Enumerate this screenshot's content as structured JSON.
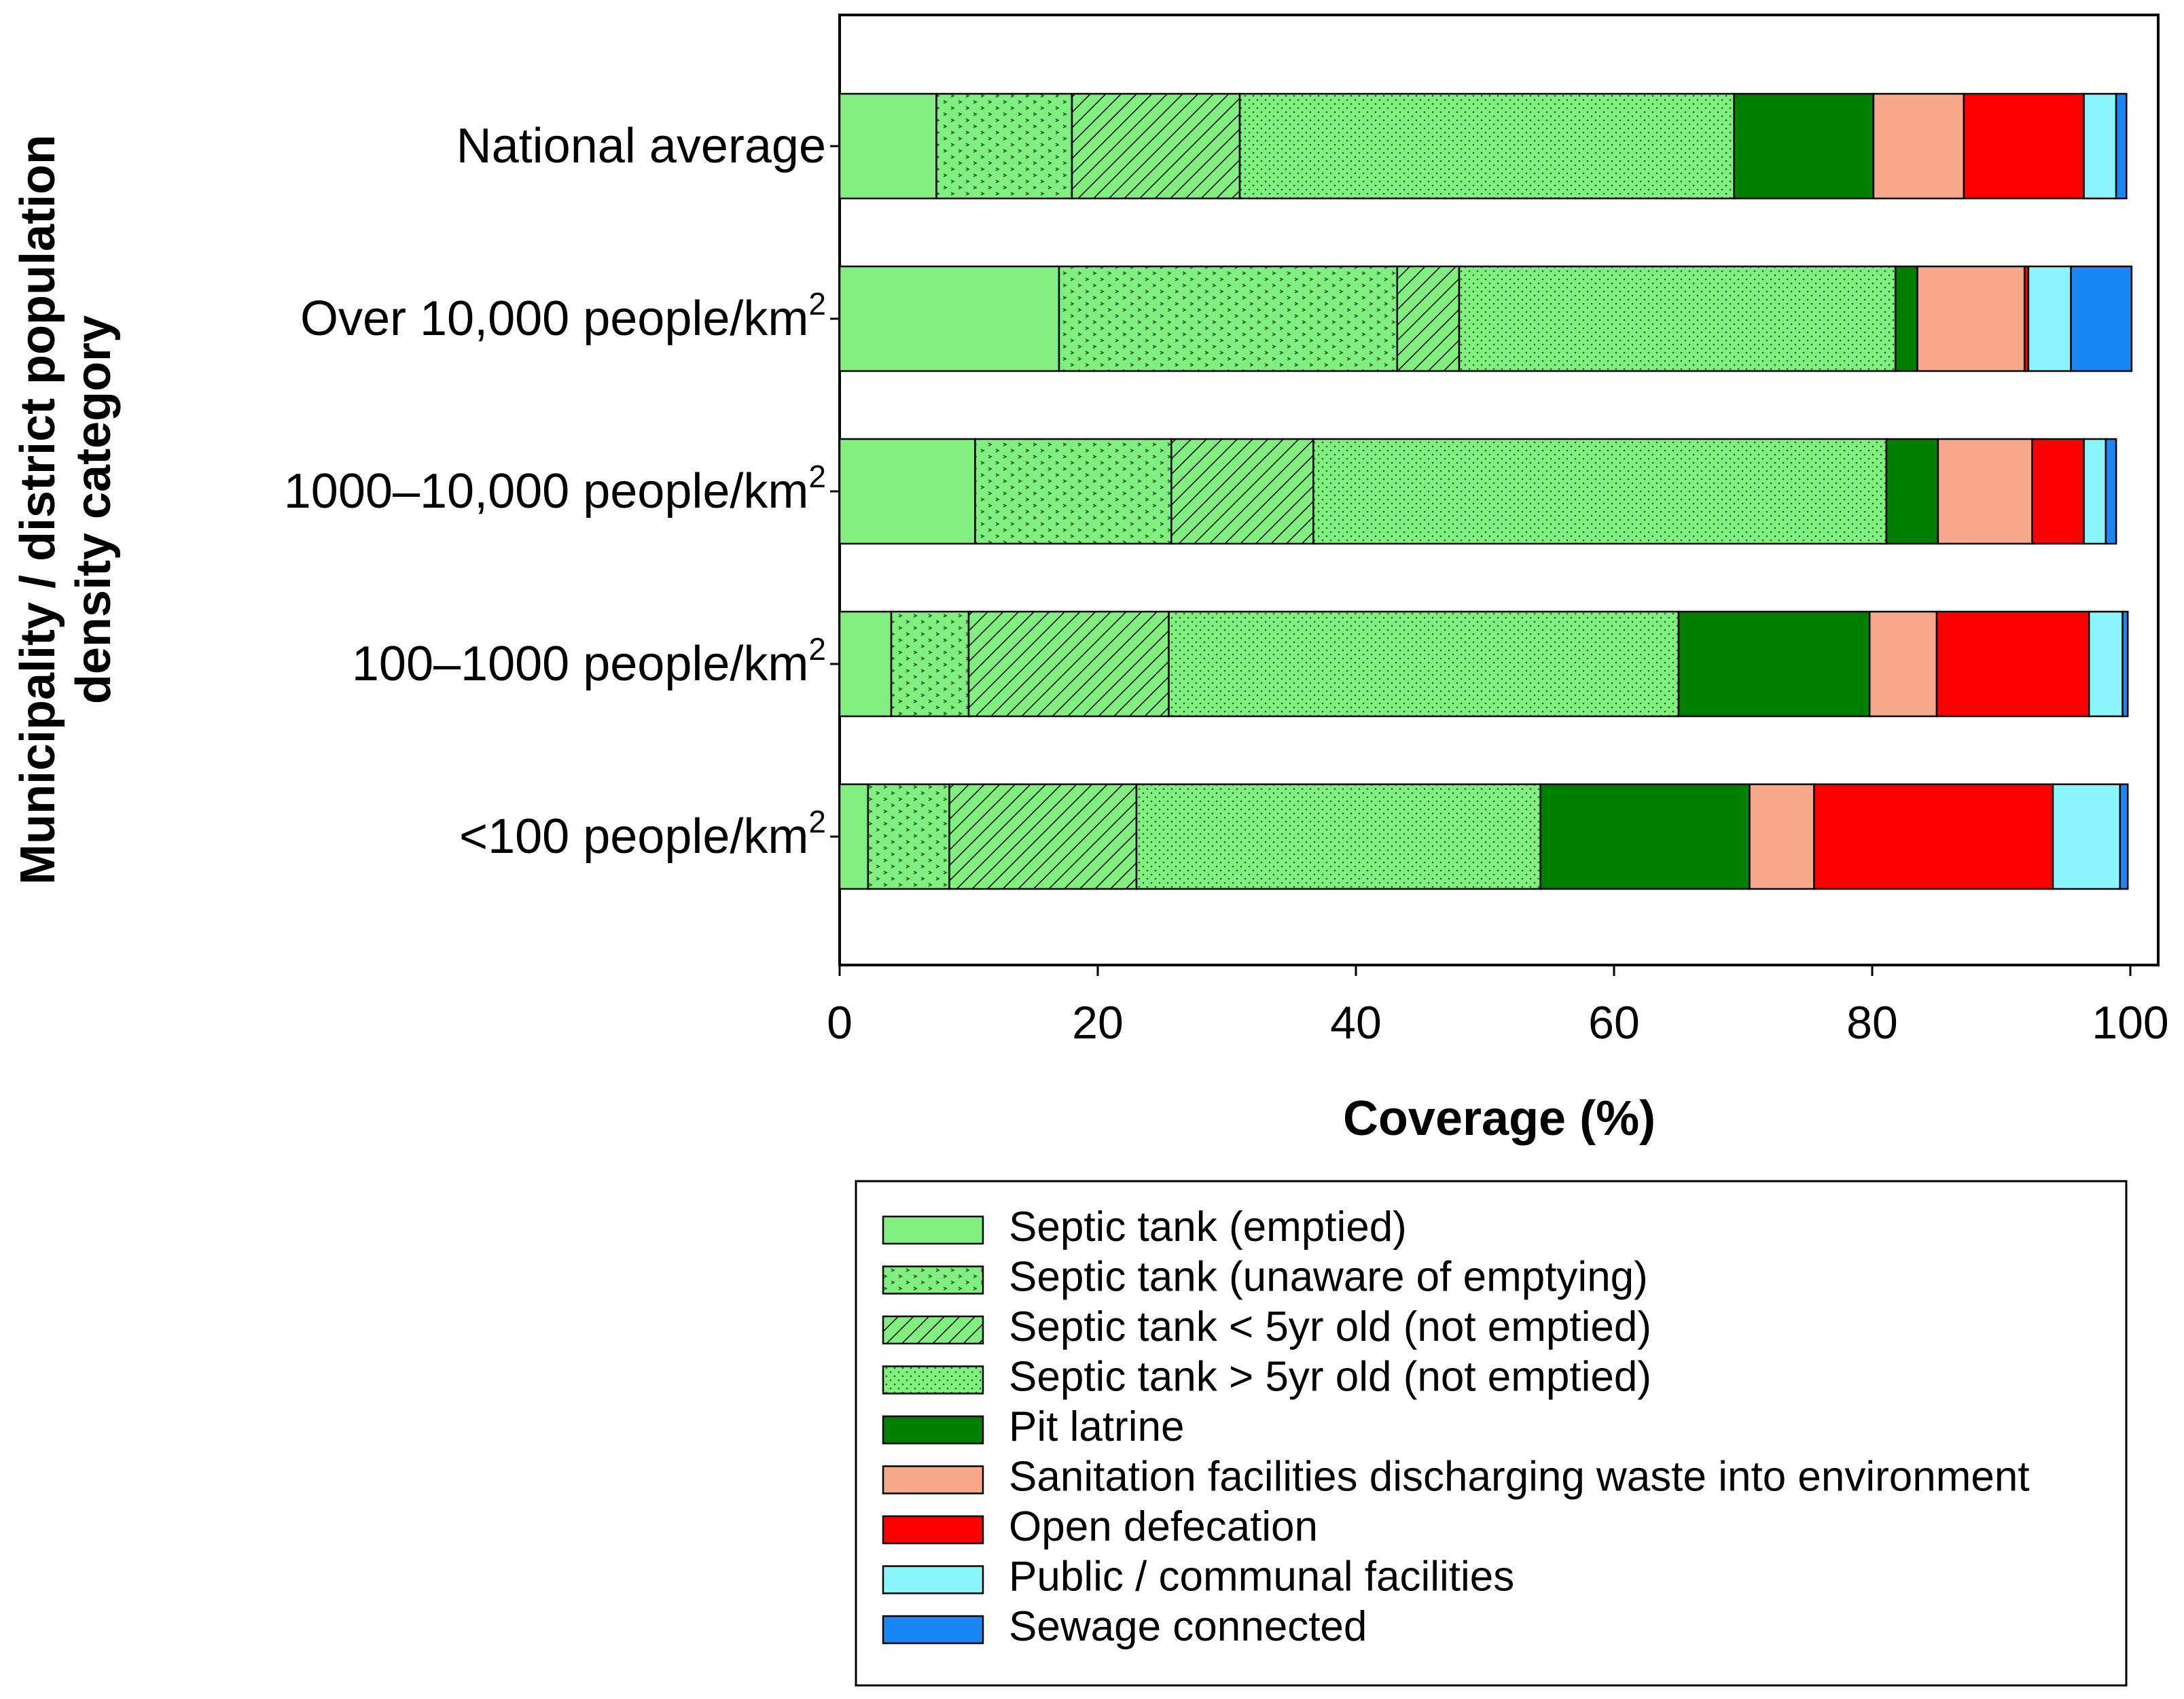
{
  "chart_data": {
    "type": "bar",
    "orientation": "horizontal",
    "stacked": true,
    "title": "",
    "xlabel": "Coverage (%)",
    "ylabel": "Municipality / district population density category",
    "ylabel_lines": [
      "Municipality / district population",
      "density category"
    ],
    "xlim": [
      0,
      100
    ],
    "xticks": [
      "0",
      "20",
      "40",
      "60",
      "80",
      "100"
    ],
    "grid": false,
    "legend_position": "bottom",
    "categories": [
      {
        "label": "National average",
        "superscript": ""
      },
      {
        "label": "Over 10,000 people/km",
        "superscript": "2"
      },
      {
        "label": "1000–10,000 people/km",
        "superscript": "2"
      },
      {
        "label": "100–1000 people/km",
        "superscript": "2"
      },
      {
        "label": "<100 people/km",
        "superscript": "2"
      }
    ],
    "series": [
      {
        "name": "Septic tank (emptied)",
        "color": "#80ef80",
        "pattern": "solid",
        "values": [
          7.5,
          17.0,
          10.5,
          4.0,
          2.2
        ]
      },
      {
        "name": "Septic tank (unaware of emptying)",
        "color": "#80ef80",
        "pattern": "arrows",
        "values": [
          10.5,
          26.2,
          15.2,
          6.0,
          6.3
        ]
      },
      {
        "name": "Septic tank < 5yr old (not emptied)",
        "color": "#80ef80",
        "pattern": "hatch",
        "values": [
          13.0,
          4.8,
          11.0,
          15.5,
          14.5
        ]
      },
      {
        "name": "Septic tank > 5yr old (not emptied)",
        "color": "#80ef80",
        "pattern": "dots",
        "values": [
          38.3,
          33.8,
          44.4,
          39.5,
          31.3
        ]
      },
      {
        "name": "Pit latrine",
        "color": "#008000",
        "pattern": "solid",
        "values": [
          10.8,
          1.7,
          4.0,
          14.8,
          16.2
        ]
      },
      {
        "name": "Sanitation facilities discharging waste into environment",
        "color": "#f8a88a",
        "pattern": "solid",
        "values": [
          7.0,
          8.3,
          7.3,
          5.2,
          5.0
        ]
      },
      {
        "name": "Open defecation",
        "color": "#ff0000",
        "pattern": "solid",
        "values": [
          9.3,
          0.3,
          4.0,
          11.8,
          18.5
        ]
      },
      {
        "name": "Public / communal facilities",
        "color": "#88f6fc",
        "pattern": "solid",
        "values": [
          2.5,
          3.3,
          1.7,
          2.6,
          5.2
        ]
      },
      {
        "name": "Sewage connected",
        "color": "#1b86f5",
        "pattern": "solid",
        "values": [
          0.8,
          4.7,
          0.8,
          0.4,
          0.6
        ]
      }
    ]
  }
}
